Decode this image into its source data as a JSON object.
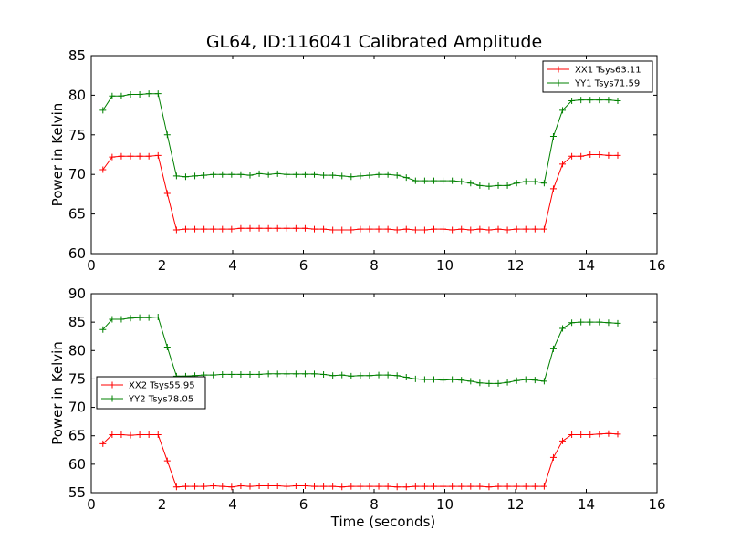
{
  "title": "GL64, ID:116041 Calibrated Amplitude",
  "colors": {
    "xx": "#ff0000",
    "yy": "#008000"
  },
  "chart_data": [
    {
      "type": "line",
      "xlabel": "",
      "ylabel": "Power in Kelvin",
      "xlim": [
        0,
        16
      ],
      "ylim": [
        60,
        85
      ],
      "xticks": [
        0,
        2,
        4,
        6,
        8,
        10,
        12,
        14,
        16
      ],
      "yticks": [
        60,
        65,
        70,
        75,
        80,
        85
      ],
      "grid": false,
      "legend": "top-right",
      "series": [
        {
          "name": "XX1 Tsys63.11",
          "color": "#ff0000",
          "x": [
            0.33,
            0.59,
            0.85,
            1.11,
            1.37,
            1.63,
            1.89,
            2.15,
            2.41,
            2.67,
            2.93,
            3.19,
            3.45,
            3.71,
            3.97,
            4.23,
            4.49,
            4.75,
            5.01,
            5.27,
            5.53,
            5.79,
            6.05,
            6.31,
            6.57,
            6.83,
            7.09,
            7.35,
            7.61,
            7.87,
            8.13,
            8.39,
            8.65,
            8.91,
            9.17,
            9.43,
            9.69,
            9.95,
            10.21,
            10.47,
            10.73,
            10.99,
            11.25,
            11.51,
            11.77,
            12.03,
            12.29,
            12.55,
            12.81,
            13.07,
            13.33,
            13.59,
            13.85,
            14.11,
            14.37,
            14.63,
            14.89
          ],
          "y": [
            70.6,
            72.2,
            72.3,
            72.3,
            72.3,
            72.3,
            72.4,
            67.6,
            63.0,
            63.1,
            63.1,
            63.1,
            63.1,
            63.1,
            63.1,
            63.2,
            63.2,
            63.2,
            63.2,
            63.2,
            63.2,
            63.2,
            63.2,
            63.1,
            63.1,
            63.0,
            63.0,
            63.0,
            63.1,
            63.1,
            63.1,
            63.1,
            63.0,
            63.1,
            63.0,
            63.0,
            63.1,
            63.1,
            63.0,
            63.1,
            63.0,
            63.1,
            63.0,
            63.1,
            63.0,
            63.1,
            63.1,
            63.1,
            63.1,
            68.2,
            71.3,
            72.3,
            72.3,
            72.5,
            72.5,
            72.4,
            72.4
          ]
        },
        {
          "name": "YY1 Tsys71.59",
          "color": "#008000",
          "x": [
            0.33,
            0.59,
            0.85,
            1.11,
            1.37,
            1.63,
            1.89,
            2.15,
            2.41,
            2.67,
            2.93,
            3.19,
            3.45,
            3.71,
            3.97,
            4.23,
            4.49,
            4.75,
            5.01,
            5.27,
            5.53,
            5.79,
            6.05,
            6.31,
            6.57,
            6.83,
            7.09,
            7.35,
            7.61,
            7.87,
            8.13,
            8.39,
            8.65,
            8.91,
            9.17,
            9.43,
            9.69,
            9.95,
            10.21,
            10.47,
            10.73,
            10.99,
            11.25,
            11.51,
            11.77,
            12.03,
            12.29,
            12.55,
            12.81,
            13.07,
            13.33,
            13.59,
            13.85,
            14.11,
            14.37,
            14.63,
            14.89
          ],
          "y": [
            78.1,
            79.9,
            79.9,
            80.1,
            80.1,
            80.2,
            80.2,
            75.0,
            69.8,
            69.7,
            69.8,
            69.9,
            70.0,
            70.0,
            70.0,
            70.0,
            69.9,
            70.1,
            70.0,
            70.1,
            70.0,
            70.0,
            70.0,
            70.0,
            69.9,
            69.9,
            69.8,
            69.7,
            69.8,
            69.9,
            70.0,
            70.0,
            69.9,
            69.6,
            69.2,
            69.2,
            69.2,
            69.2,
            69.2,
            69.1,
            68.9,
            68.6,
            68.5,
            68.6,
            68.6,
            68.9,
            69.1,
            69.1,
            68.9,
            74.8,
            78.1,
            79.3,
            79.4,
            79.4,
            79.4,
            79.4,
            79.3
          ]
        }
      ]
    },
    {
      "type": "line",
      "xlabel": "Time (seconds)",
      "ylabel": "Power in Kelvin",
      "xlim": [
        0,
        16
      ],
      "ylim": [
        55,
        90
      ],
      "xticks": [
        0,
        2,
        4,
        6,
        8,
        10,
        12,
        14,
        16
      ],
      "yticks": [
        55,
        60,
        65,
        70,
        75,
        80,
        85,
        90
      ],
      "grid": false,
      "legend": "center-left",
      "series": [
        {
          "name": "XX2 Tsys55.95",
          "color": "#ff0000",
          "x": [
            0.33,
            0.59,
            0.85,
            1.11,
            1.37,
            1.63,
            1.89,
            2.15,
            2.41,
            2.67,
            2.93,
            3.19,
            3.45,
            3.71,
            3.97,
            4.23,
            4.49,
            4.75,
            5.01,
            5.27,
            5.53,
            5.79,
            6.05,
            6.31,
            6.57,
            6.83,
            7.09,
            7.35,
            7.61,
            7.87,
            8.13,
            8.39,
            8.65,
            8.91,
            9.17,
            9.43,
            9.69,
            9.95,
            10.21,
            10.47,
            10.73,
            10.99,
            11.25,
            11.51,
            11.77,
            12.03,
            12.29,
            12.55,
            12.81,
            13.07,
            13.33,
            13.59,
            13.85,
            14.11,
            14.37,
            14.63,
            14.89
          ],
          "y": [
            63.6,
            65.2,
            65.2,
            65.1,
            65.2,
            65.2,
            65.2,
            60.6,
            56.0,
            56.1,
            56.1,
            56.1,
            56.2,
            56.1,
            56.0,
            56.2,
            56.1,
            56.2,
            56.2,
            56.2,
            56.1,
            56.2,
            56.2,
            56.1,
            56.1,
            56.1,
            56.0,
            56.1,
            56.1,
            56.1,
            56.1,
            56.1,
            56.0,
            56.0,
            56.1,
            56.1,
            56.1,
            56.1,
            56.1,
            56.1,
            56.1,
            56.1,
            56.0,
            56.1,
            56.1,
            56.1,
            56.1,
            56.1,
            56.1,
            61.2,
            64.1,
            65.2,
            65.2,
            65.2,
            65.3,
            65.4,
            65.3
          ]
        },
        {
          "name": "YY2 Tsys78.05",
          "color": "#008000",
          "x": [
            0.33,
            0.59,
            0.85,
            1.11,
            1.37,
            1.63,
            1.89,
            2.15,
            2.41,
            2.67,
            2.93,
            3.19,
            3.45,
            3.71,
            3.97,
            4.23,
            4.49,
            4.75,
            5.01,
            5.27,
            5.53,
            5.79,
            6.05,
            6.31,
            6.57,
            6.83,
            7.09,
            7.35,
            7.61,
            7.87,
            8.13,
            8.39,
            8.65,
            8.91,
            9.17,
            9.43,
            9.69,
            9.95,
            10.21,
            10.47,
            10.73,
            10.99,
            11.25,
            11.51,
            11.77,
            12.03,
            12.29,
            12.55,
            12.81,
            13.07,
            13.33,
            13.59,
            13.85,
            14.11,
            14.37,
            14.63,
            14.89
          ],
          "y": [
            83.7,
            85.5,
            85.5,
            85.7,
            85.8,
            85.8,
            85.9,
            80.6,
            75.5,
            75.5,
            75.6,
            75.7,
            75.7,
            75.8,
            75.8,
            75.8,
            75.8,
            75.8,
            75.9,
            75.9,
            75.9,
            75.9,
            75.9,
            75.9,
            75.8,
            75.6,
            75.7,
            75.5,
            75.6,
            75.6,
            75.7,
            75.7,
            75.6,
            75.3,
            75.0,
            74.9,
            74.9,
            74.8,
            74.9,
            74.8,
            74.6,
            74.3,
            74.2,
            74.2,
            74.4,
            74.7,
            74.9,
            74.8,
            74.6,
            80.3,
            83.9,
            84.9,
            85.0,
            85.0,
            85.0,
            84.9,
            84.8
          ]
        }
      ]
    }
  ]
}
